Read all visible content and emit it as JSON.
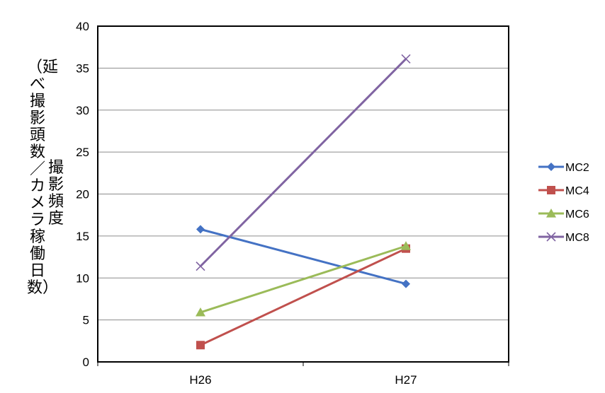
{
  "chart_data": {
    "type": "line",
    "title": "",
    "xlabel": "",
    "ylabel": "撮影頻度（延べ撮影頭数／カメラ稼働日数）",
    "ylabel_main": "撮影頻度",
    "ylabel_sub": "（延べ撮影頭数／カメラ稼働日数）",
    "categories": [
      "H26",
      "H27"
    ],
    "ylim": [
      0,
      40
    ],
    "yticks": [
      0,
      5,
      10,
      15,
      20,
      25,
      30,
      35,
      40
    ],
    "grid": true,
    "legend_position": "right",
    "series": [
      {
        "name": "MC2",
        "values": [
          15.8,
          9.3
        ],
        "color": "#4472c4",
        "marker": "diamond"
      },
      {
        "name": "MC4",
        "values": [
          2.0,
          13.5
        ],
        "color": "#c0504d",
        "marker": "square"
      },
      {
        "name": "MC6",
        "values": [
          5.9,
          13.8
        ],
        "color": "#9bbb59",
        "marker": "triangle"
      },
      {
        "name": "MC8",
        "values": [
          11.4,
          36.1
        ],
        "color": "#8064a2",
        "marker": "x"
      }
    ]
  }
}
